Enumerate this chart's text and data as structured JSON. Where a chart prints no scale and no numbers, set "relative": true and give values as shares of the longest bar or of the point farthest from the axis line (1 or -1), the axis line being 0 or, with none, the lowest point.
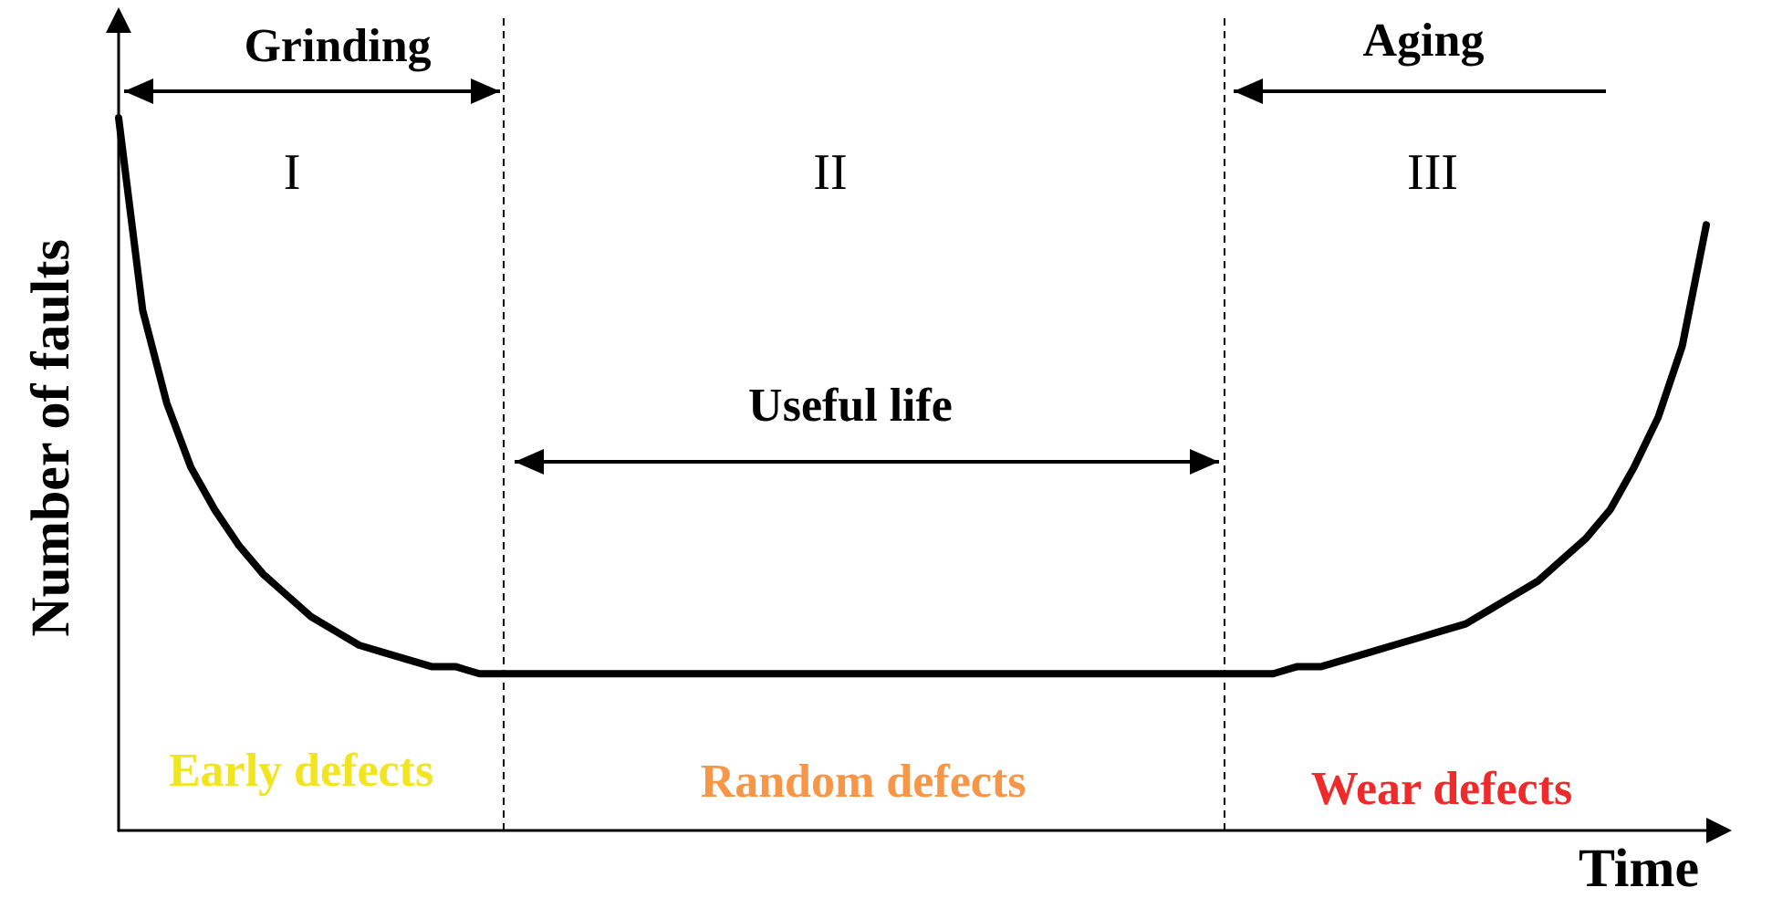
{
  "chart_data": {
    "type": "line",
    "relative": true,
    "xlabel": "Time",
    "ylabel": "Number of faults",
    "grid": false,
    "marker": "none",
    "line_style": "solid",
    "categories": [
      null,
      null,
      null,
      null,
      null,
      null,
      null,
      null,
      null,
      null,
      null,
      null,
      null,
      null,
      null,
      null,
      null,
      null,
      null,
      null,
      null,
      null,
      null,
      null,
      null,
      null,
      null,
      null,
      null,
      null,
      null,
      null,
      null,
      null,
      null,
      null,
      null,
      null,
      null,
      null,
      null,
      null,
      null,
      null,
      null,
      null,
      null,
      null,
      null,
      null,
      null,
      null,
      null,
      null,
      null,
      null,
      null,
      null,
      null,
      null,
      null,
      null,
      null,
      null,
      null,
      null,
      null
    ],
    "series": [
      {
        "color": "#000000",
        "values": [
          1.0,
          0.73,
          0.6,
          0.51,
          0.45,
          0.4,
          0.36,
          0.33,
          0.3,
          0.28,
          0.26,
          0.25,
          0.24,
          0.23,
          0.23,
          0.22,
          0.22,
          0.22,
          0.22,
          0.22,
          0.22,
          0.22,
          0.22,
          0.22,
          0.22,
          0.22,
          0.22,
          0.22,
          0.22,
          0.22,
          0.22,
          0.22,
          0.22,
          0.22,
          0.22,
          0.22,
          0.22,
          0.22,
          0.22,
          0.22,
          0.22,
          0.22,
          0.22,
          0.22,
          0.22,
          0.22,
          0.22,
          0.22,
          0.22,
          0.23,
          0.23,
          0.24,
          0.25,
          0.26,
          0.27,
          0.28,
          0.29,
          0.31,
          0.33,
          0.35,
          0.38,
          0.41,
          0.45,
          0.51,
          0.58,
          0.68,
          0.85
        ]
      }
    ],
    "annotations": [
      "Grinding",
      "I",
      "II",
      "Aging",
      "III",
      "Useful life",
      "Early defects",
      "Random defects",
      "Wear defects"
    ]
  }
}
